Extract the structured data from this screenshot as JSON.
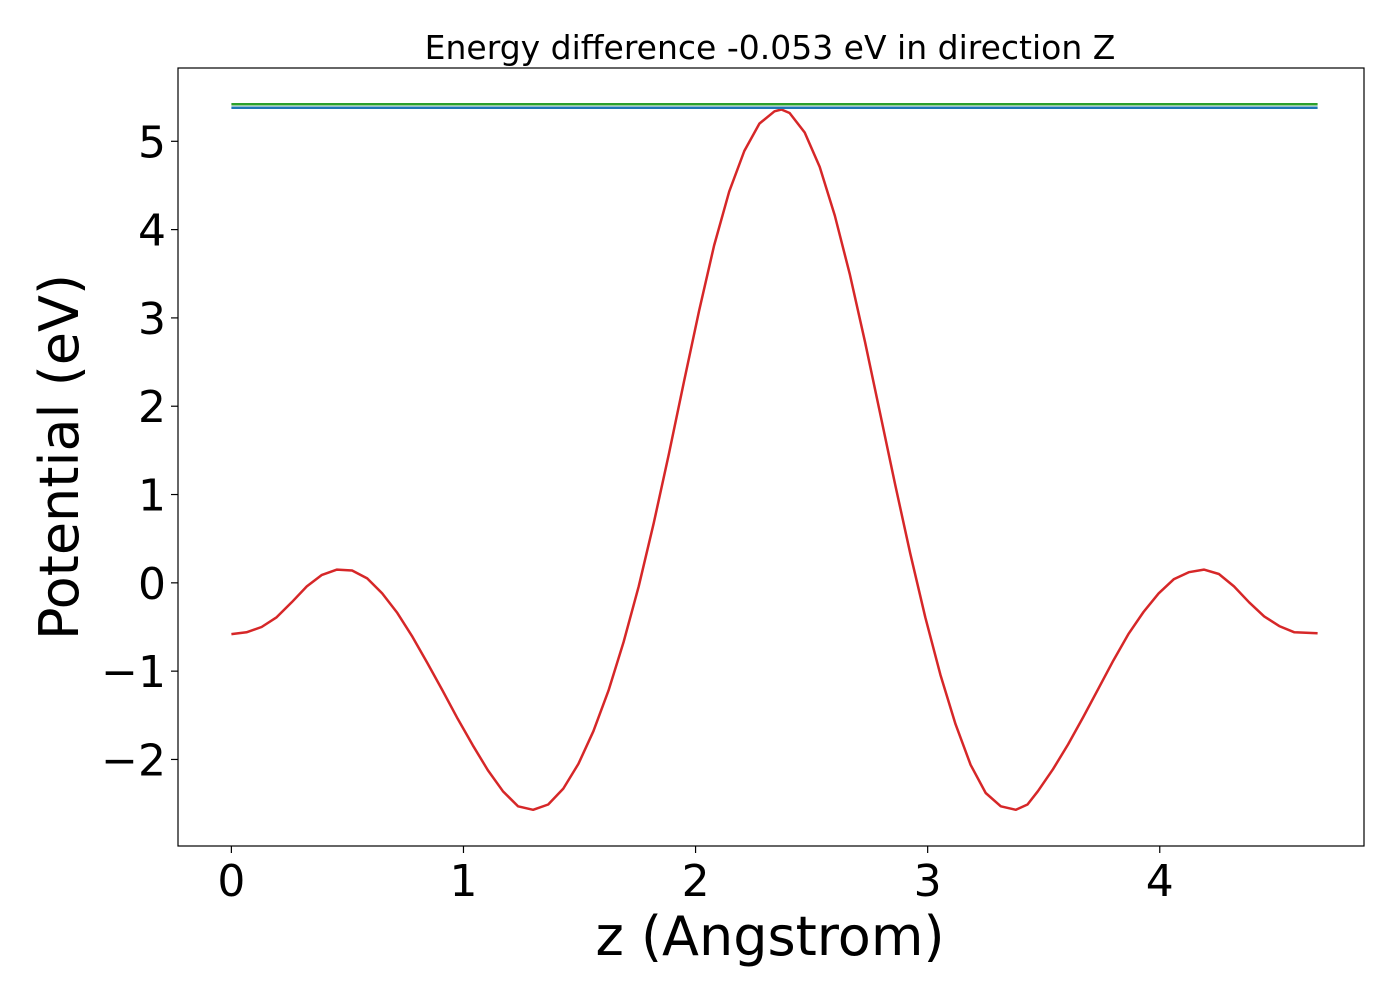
{
  "chart_data": {
    "type": "line",
    "title": "Energy difference -0.053 eV in direction Z",
    "xlabel": "z (Angstrom)",
    "ylabel": "Potential (eV)",
    "xlim": [
      -0.23,
      4.88
    ],
    "ylim": [
      -2.98,
      5.83
    ],
    "xticks": [
      0,
      1,
      2,
      3,
      4
    ],
    "yticks": [
      -2,
      -1,
      0,
      1,
      2,
      3,
      4,
      5
    ],
    "xtick_labels": [
      "0",
      "1",
      "2",
      "3",
      "4"
    ],
    "ytick_labels": [
      "−2",
      "−1",
      "0",
      "1",
      "2",
      "3",
      "4",
      "5"
    ],
    "grid": false,
    "series": [
      {
        "color": "#d62728",
        "x": [
          0,
          0.065,
          0.13,
          0.195,
          0.26,
          0.325,
          0.39,
          0.455,
          0.52,
          0.585,
          0.65,
          0.715,
          0.78,
          0.845,
          0.91,
          0.975,
          1.04,
          1.105,
          1.17,
          1.235,
          1.3,
          1.365,
          1.43,
          1.495,
          1.56,
          1.625,
          1.69,
          1.755,
          1.82,
          1.885,
          1.95,
          2.015,
          2.08,
          2.145,
          2.21,
          2.275,
          2.34,
          2.37,
          2.405,
          2.47,
          2.535,
          2.6,
          2.665,
          2.73,
          2.795,
          2.86,
          2.925,
          2.99,
          3.055,
          3.12,
          3.185,
          3.25,
          3.315,
          3.38,
          3.43,
          3.475,
          3.54,
          3.605,
          3.67,
          3.735,
          3.8,
          3.865,
          3.93,
          3.995,
          4.06,
          4.125,
          4.19,
          4.255,
          4.32,
          4.385,
          4.45,
          4.515,
          4.58,
          4.68
        ],
        "values": [
          -0.58,
          -0.56,
          -0.5,
          -0.39,
          -0.22,
          -0.04,
          0.09,
          0.15,
          0.14,
          0.05,
          -0.12,
          -0.34,
          -0.61,
          -0.91,
          -1.22,
          -1.54,
          -1.84,
          -2.12,
          -2.36,
          -2.53,
          -2.57,
          -2.51,
          -2.33,
          -2.05,
          -1.68,
          -1.22,
          -0.67,
          -0.04,
          0.68,
          1.46,
          2.28,
          3.08,
          3.82,
          4.43,
          4.89,
          5.2,
          5.34,
          5.36,
          5.32,
          5.1,
          4.71,
          4.16,
          3.49,
          2.73,
          1.92,
          1.11,
          0.33,
          -0.39,
          -1.04,
          -1.6,
          -2.06,
          -2.38,
          -2.53,
          -2.57,
          -2.51,
          -2.36,
          -2.11,
          -1.83,
          -1.52,
          -1.2,
          -0.88,
          -0.58,
          -0.33,
          -0.12,
          0.04,
          0.12,
          0.15,
          0.1,
          -0.04,
          -0.22,
          -0.38,
          -0.49,
          -0.56,
          -0.57
        ]
      },
      {
        "color": "#2ca02c",
        "x": [
          0,
          4.68
        ],
        "values": [
          5.42,
          5.42
        ]
      },
      {
        "color": "#1f77b4",
        "x": [
          0,
          4.68
        ],
        "values": [
          5.38,
          5.38
        ]
      }
    ]
  }
}
